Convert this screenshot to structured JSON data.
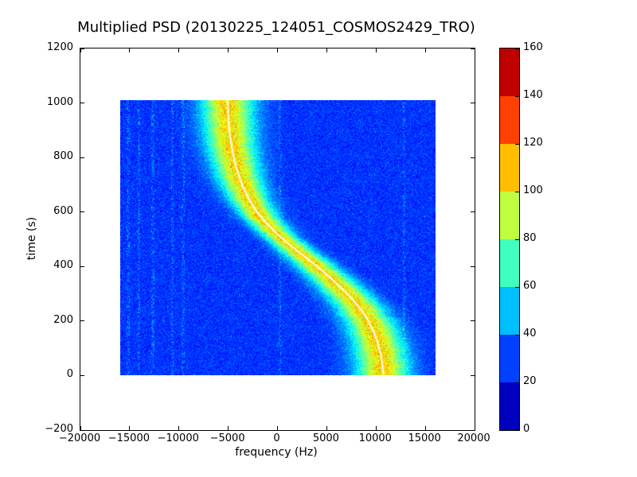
{
  "chart_data": {
    "type": "heatmap",
    "title": "Multiplied PSD (20130225_124051_COSMOS2429_TRO)",
    "xlabel": "frequency (Hz)",
    "ylabel": "time (s)",
    "xlim": [
      -20000,
      20000
    ],
    "ylim": [
      -200,
      1200
    ],
    "xtick_values": [
      -20000,
      -15000,
      -10000,
      -5000,
      0,
      5000,
      10000,
      15000,
      20000
    ],
    "xtick_labels": [
      "−20000",
      "−15000",
      "−10000",
      "−5000",
      "0",
      "5000",
      "10000",
      "15000",
      "20000"
    ],
    "ytick_values": [
      -200,
      0,
      200,
      400,
      600,
      800,
      1000,
      1200
    ],
    "ytick_labels": [
      "−200",
      "0",
      "200",
      "400",
      "600",
      "800",
      "1000",
      "1200"
    ],
    "extent": {
      "freq_min": -16000,
      "freq_max": 16000,
      "time_min": 0,
      "time_max": 1010
    },
    "colormap": "jet",
    "background_level": 28,
    "track_peak_level": 104,
    "grid": false,
    "colorbar": {
      "min": 0,
      "max": 160,
      "tick_values": [
        0,
        20,
        40,
        60,
        80,
        100,
        120,
        140,
        160
      ],
      "tick_labels": [
        "0",
        "20",
        "40",
        "60",
        "80",
        "100",
        "120",
        "140",
        "160"
      ],
      "band_colors": [
        "#0000bf",
        "#0040ff",
        "#00bfff",
        "#40ffbf",
        "#bfff40",
        "#ffbf00",
        "#ff4000",
        "#bf0000"
      ]
    },
    "doppler_track": [
      {
        "t": 1010,
        "f": -5100
      },
      {
        "t": 960,
        "f": -5050
      },
      {
        "t": 920,
        "f": -4980
      },
      {
        "t": 880,
        "f": -4870
      },
      {
        "t": 840,
        "f": -4700
      },
      {
        "t": 800,
        "f": -4480
      },
      {
        "t": 760,
        "f": -4200
      },
      {
        "t": 720,
        "f": -3850
      },
      {
        "t": 680,
        "f": -3400
      },
      {
        "t": 640,
        "f": -2850
      },
      {
        "t": 600,
        "f": -2150
      },
      {
        "t": 560,
        "f": -1250
      },
      {
        "t": 520,
        "f": -150
      },
      {
        "t": 480,
        "f": 1100
      },
      {
        "t": 440,
        "f": 2500
      },
      {
        "t": 400,
        "f": 3900
      },
      {
        "t": 360,
        "f": 5200
      },
      {
        "t": 320,
        "f": 6400
      },
      {
        "t": 280,
        "f": 7500
      },
      {
        "t": 240,
        "f": 8400
      },
      {
        "t": 200,
        "f": 9150
      },
      {
        "t": 160,
        "f": 9700
      },
      {
        "t": 120,
        "f": 10100
      },
      {
        "t": 80,
        "f": 10400
      },
      {
        "t": 40,
        "f": 10600
      },
      {
        "t": 0,
        "f": 10700
      }
    ],
    "rfi_line_freqs": [
      -15200,
      -14100,
      -12700,
      -10700,
      -9600,
      200,
      12800
    ],
    "track_core_color": "#ffffff"
  }
}
